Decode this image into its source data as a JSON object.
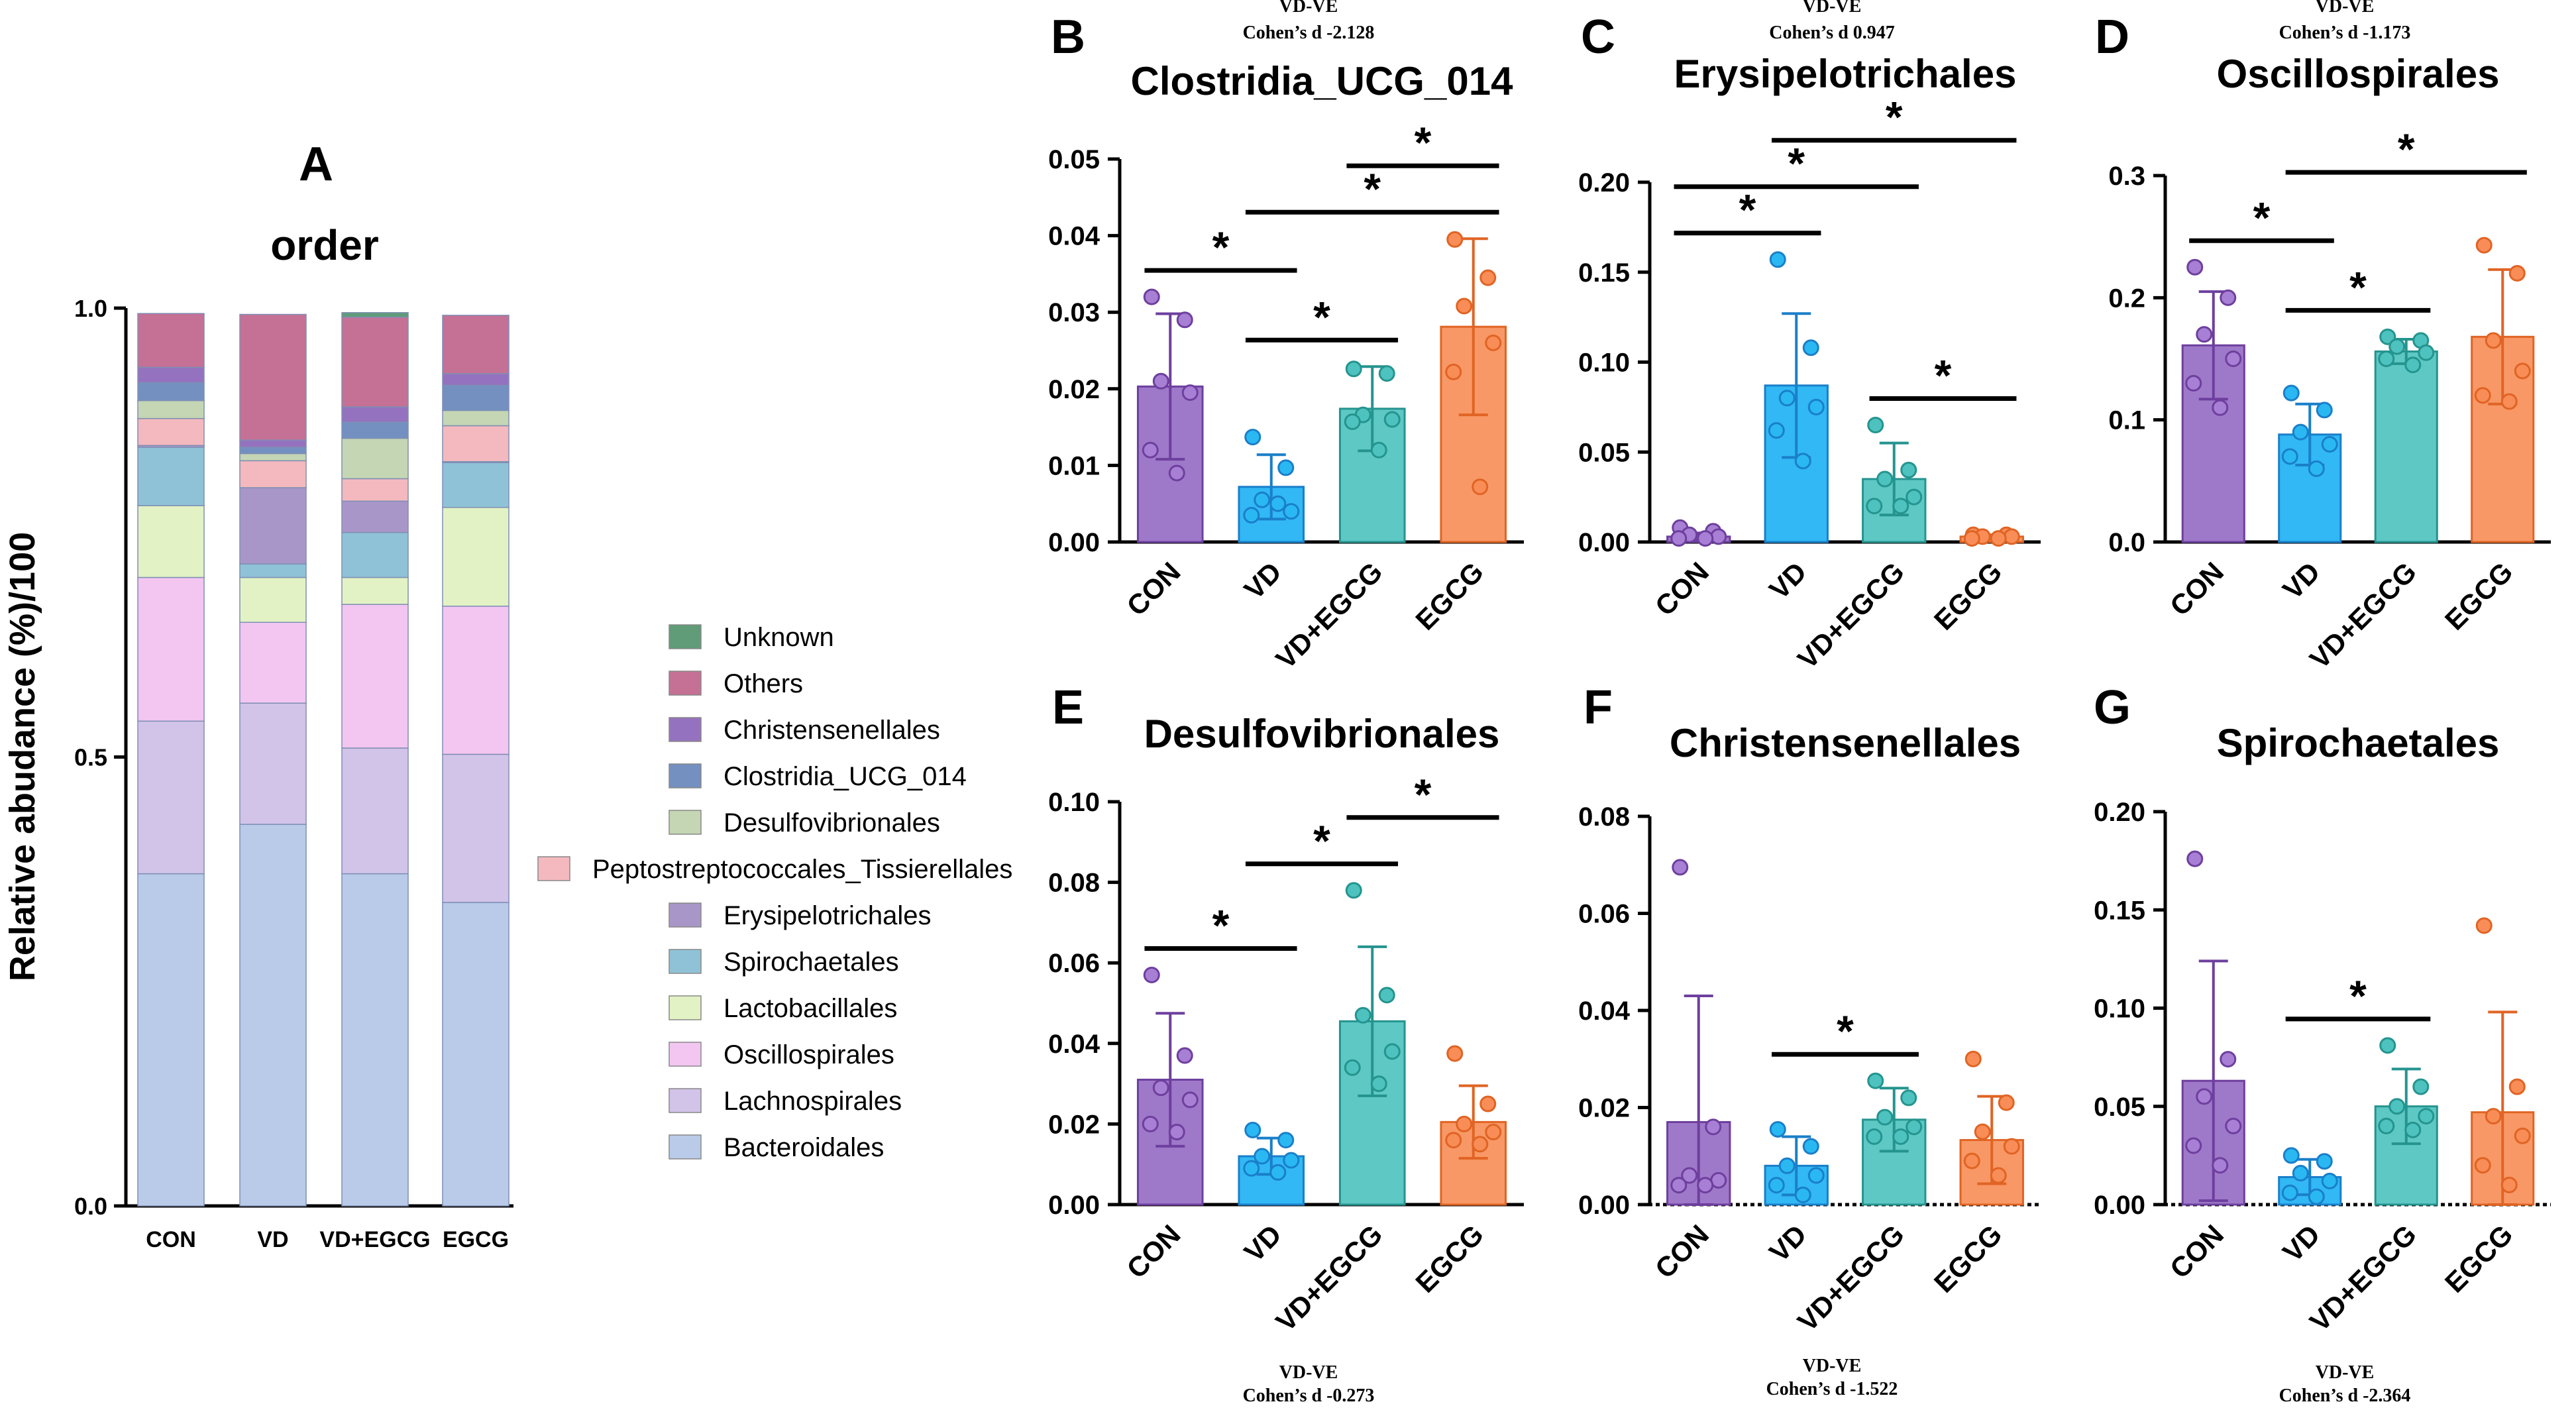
{
  "chart_data": [
    {
      "panel": "A",
      "type": "bar",
      "stacked": true,
      "title": "order",
      "ylabel": "Relative abudance (%)/100",
      "ylim": [
        0,
        1.0
      ],
      "yticks": [
        "0.0",
        "0.5",
        "1.0"
      ],
      "categories": [
        "CON",
        "VD",
        "VD+EGCG",
        "EGCG"
      ],
      "series": [
        {
          "name": "Bacteroidales",
          "color": "#b9cbe9",
          "values": [
            0.37,
            0.425,
            0.37,
            0.338
          ]
        },
        {
          "name": "Lachnospirales",
          "color": "#d2c3e9",
          "values": [
            0.17,
            0.135,
            0.14,
            0.165
          ]
        },
        {
          "name": "Oscillospirales",
          "color": "#f3c6f1",
          "values": [
            0.16,
            0.09,
            0.16,
            0.165
          ]
        },
        {
          "name": "Lactobacillales",
          "color": "#e2f2c4",
          "values": [
            0.08,
            0.05,
            0.03,
            0.11
          ]
        },
        {
          "name": "Spirochaetales",
          "color": "#8fc2d7",
          "values": [
            0.065,
            0.015,
            0.05,
            0.05
          ]
        },
        {
          "name": "Erysipelotrichales",
          "color": "#a996c9",
          "values": [
            0.002,
            0.085,
            0.035,
            0.001
          ]
        },
        {
          "name": "Peptostreptococcales_Tissierellales",
          "color": "#f4b9be",
          "values": [
            0.03,
            0.03,
            0.025,
            0.04
          ]
        },
        {
          "name": "Desulfovibrionales",
          "color": "#c4d6b3",
          "values": [
            0.02,
            0.008,
            0.045,
            0.017
          ]
        },
        {
          "name": "Clostridia_UCG_014",
          "color": "#7390c1",
          "values": [
            0.02,
            0.007,
            0.018,
            0.028
          ]
        },
        {
          "name": "Christensenellales",
          "color": "#9572bf",
          "values": [
            0.017,
            0.008,
            0.017,
            0.013
          ]
        },
        {
          "name": "Others",
          "color": "#c57095",
          "values": [
            0.06,
            0.14,
            0.1,
            0.065
          ]
        },
        {
          "name": "Unknown",
          "color": "#5f9c77",
          "values": [
            0.0,
            0.0,
            0.005,
            0.0
          ]
        }
      ],
      "legend_order": [
        "Unknown",
        "Others",
        "Christensenellales",
        "Clostridia_UCG_014",
        "Desulfovibrionales",
        "Peptostreptococcales_Tissierellales",
        "Erysipelotrichales",
        "Spirochaetales",
        "Lactobacillales",
        "Oscillospirales",
        "Lachnospirales",
        "Bacteroidales"
      ]
    },
    {
      "panel": "B",
      "type": "bar",
      "title": "Clostridia_UCG_014",
      "cohen": [
        "VD-VE",
        "Cohen’s d -2.128"
      ],
      "categories": [
        "CON",
        "VD",
        "VD+EGCG",
        "EGCG"
      ],
      "ylim": [
        0,
        0.05
      ],
      "yticks": [
        "0.00",
        "0.01",
        "0.02",
        "0.03",
        "0.04",
        "0.05"
      ],
      "means": [
        0.0203,
        0.0072,
        0.0174,
        0.0281
      ],
      "sd": [
        0.0095,
        0.0042,
        0.0055,
        0.0115
      ],
      "points": [
        [
          0.032,
          0.029,
          0.021,
          0.0195,
          0.012,
          0.009
        ],
        [
          0.0137,
          0.0097,
          0.0055,
          0.004,
          0.0035,
          0.005
        ],
        [
          0.0226,
          0.022,
          0.0166,
          0.016,
          0.0157,
          0.012
        ],
        [
          0.0395,
          0.0345,
          0.0308,
          0.026,
          0.0222,
          0.0072
        ]
      ],
      "significance": [
        {
          "from": 0,
          "to": 1,
          "label": "*"
        },
        {
          "from": 1,
          "to": 2,
          "label": "*"
        },
        {
          "from": 1,
          "to": 3,
          "label": "*"
        },
        {
          "from": 2,
          "to": 3,
          "label": "*"
        }
      ]
    },
    {
      "panel": "C",
      "type": "bar",
      "title": "Erysipelotrichales",
      "cohen": [
        "VD-VE",
        "Cohen’s d 0.947"
      ],
      "categories": [
        "CON",
        "VD",
        "VD+EGCG",
        "EGCG"
      ],
      "ylim": [
        0,
        0.2
      ],
      "yticks": [
        "0.00",
        "0.05",
        "0.10",
        "0.15",
        "0.20"
      ],
      "means": [
        0.003,
        0.087,
        0.035,
        0.003
      ],
      "sd": [
        0.002,
        0.04,
        0.02,
        0.001
      ],
      "points": [
        [
          0.008,
          0.006,
          0.004,
          0.003,
          0.002,
          0.002
        ],
        [
          0.157,
          0.108,
          0.08,
          0.075,
          0.062,
          0.045
        ],
        [
          0.065,
          0.04,
          0.035,
          0.025,
          0.02,
          0.02
        ],
        [
          0.004,
          0.004,
          0.003,
          0.003,
          0.002,
          0.002
        ]
      ],
      "significance": [
        {
          "from": 0,
          "to": 1,
          "label": "*"
        },
        {
          "from": 0,
          "to": 2,
          "label": "*"
        },
        {
          "from": 1,
          "to": 3,
          "label": "*"
        },
        {
          "from": 2,
          "to": 3,
          "label": "*"
        }
      ]
    },
    {
      "panel": "D",
      "type": "bar",
      "title": "Oscillospirales",
      "cohen": [
        "VD-VE",
        "Cohen’s d -1.173"
      ],
      "categories": [
        "CON",
        "VD",
        "VD+EGCG",
        "EGCG"
      ],
      "ylim": [
        0,
        0.3
      ],
      "yticks": [
        "0.0",
        "0.1",
        "0.2",
        "0.3"
      ],
      "means": [
        0.161,
        0.088,
        0.156,
        0.168
      ],
      "sd": [
        0.044,
        0.025,
        0.01,
        0.055
      ],
      "points": [
        [
          0.225,
          0.2,
          0.17,
          0.15,
          0.13,
          0.11
        ],
        [
          0.122,
          0.108,
          0.09,
          0.08,
          0.07,
          0.06
        ],
        [
          0.168,
          0.165,
          0.16,
          0.155,
          0.15,
          0.145
        ],
        [
          0.243,
          0.22,
          0.165,
          0.14,
          0.12,
          0.115
        ]
      ],
      "significance": [
        {
          "from": 0,
          "to": 1,
          "label": "*"
        },
        {
          "from": 1,
          "to": 2,
          "label": "*"
        },
        {
          "from": 1,
          "to": 3,
          "label": "*"
        }
      ]
    },
    {
      "panel": "E",
      "type": "bar",
      "title": "Desulfovibrionales",
      "cohen": [
        "VD-VE",
        "Cohen’s d -0.273"
      ],
      "categories": [
        "CON",
        "VD",
        "VD+EGCG",
        "EGCG"
      ],
      "ylim": [
        0,
        0.1
      ],
      "yticks": [
        "0.00",
        "0.02",
        "0.04",
        "0.06",
        "0.08",
        "0.10"
      ],
      "means": [
        0.031,
        0.012,
        0.0455,
        0.0205
      ],
      "sd": [
        0.0165,
        0.0045,
        0.0185,
        0.009
      ],
      "points": [
        [
          0.057,
          0.037,
          0.029,
          0.026,
          0.02,
          0.018
        ],
        [
          0.0185,
          0.016,
          0.012,
          0.011,
          0.009,
          0.008
        ],
        [
          0.078,
          0.052,
          0.047,
          0.038,
          0.034,
          0.03
        ],
        [
          0.0375,
          0.025,
          0.02,
          0.018,
          0.016,
          0.015
        ]
      ],
      "significance": [
        {
          "from": 0,
          "to": 1,
          "label": "*"
        },
        {
          "from": 1,
          "to": 2,
          "label": "*"
        },
        {
          "from": 2,
          "to": 3,
          "label": "*"
        }
      ]
    },
    {
      "panel": "F",
      "type": "bar",
      "title": "Christensenellales",
      "cohen": [
        "VD-VE",
        "Cohen’s d -1.522"
      ],
      "categories": [
        "CON",
        "VD",
        "VD+EGCG",
        "EGCG"
      ],
      "ylim": [
        0,
        0.08
      ],
      "yticks": [
        "0.00",
        "0.02",
        "0.04",
        "0.06",
        "0.08"
      ],
      "means": [
        0.017,
        0.008,
        0.0175,
        0.0133
      ],
      "sd": [
        0.026,
        0.006,
        0.0065,
        0.009
      ],
      "points": [
        [
          0.0695,
          0.016,
          0.006,
          0.005,
          0.004,
          0.004
        ],
        [
          0.0155,
          0.012,
          0.008,
          0.006,
          0.004,
          0.002
        ],
        [
          0.0255,
          0.022,
          0.018,
          0.016,
          0.014,
          0.014
        ],
        [
          0.03,
          0.021,
          0.015,
          0.012,
          0.009,
          0.006
        ]
      ],
      "significance": [
        {
          "from": 1,
          "to": 2,
          "label": "*"
        }
      ]
    },
    {
      "panel": "G",
      "type": "bar",
      "title": "Spirochaetales",
      "cohen": [
        "VD-VE",
        "Cohen’s d -2.364"
      ],
      "categories": [
        "CON",
        "VD",
        "VD+EGCG",
        "EGCG"
      ],
      "ylim": [
        0,
        0.2
      ],
      "yticks": [
        "0.00",
        "0.05",
        "0.10",
        "0.15",
        "0.20"
      ],
      "means": [
        0.063,
        0.014,
        0.05,
        0.047
      ],
      "sd": [
        0.061,
        0.009,
        0.019,
        0.051
      ],
      "points": [
        [
          0.176,
          0.074,
          0.055,
          0.04,
          0.03,
          0.02
        ],
        [
          0.025,
          0.022,
          0.016,
          0.012,
          0.006,
          0.004
        ],
        [
          0.081,
          0.06,
          0.05,
          0.045,
          0.04,
          0.038
        ],
        [
          0.142,
          0.06,
          0.045,
          0.035,
          0.02,
          0.01
        ]
      ],
      "significance": [
        {
          "from": 1,
          "to": 2,
          "label": "*"
        }
      ]
    }
  ],
  "group_colors": {
    "fill": [
      "#9f79c9",
      "#31b8f5",
      "#5ec8c4",
      "#f89866"
    ],
    "stroke": [
      "#6e3f9e",
      "#1a7fc9",
      "#25948f",
      "#e06424"
    ],
    "point_fill": [
      "#a77fd4",
      "#2ab8f3",
      "#4ec2be",
      "#f98d57"
    ]
  }
}
